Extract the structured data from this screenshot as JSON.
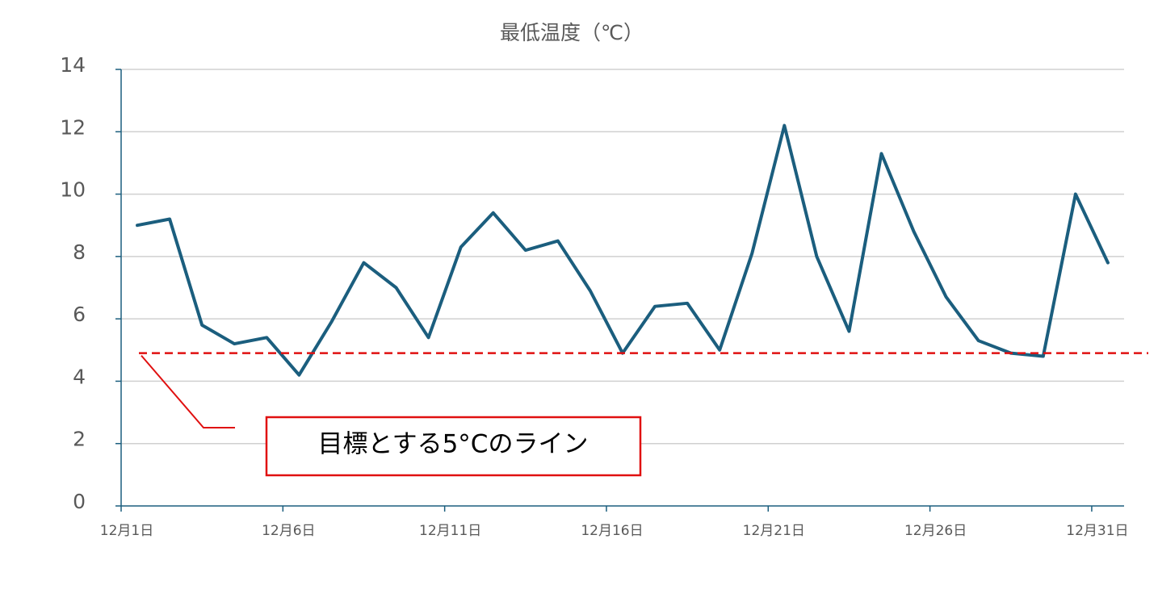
{
  "chart_data": {
    "type": "line",
    "title": "最低温度（℃）",
    "categories": [
      "12月1日",
      null,
      null,
      null,
      null,
      "12月6日",
      null,
      null,
      null,
      null,
      "12月11日",
      null,
      null,
      null,
      null,
      "12月16日",
      null,
      null,
      null,
      null,
      "12月21日",
      null,
      null,
      null,
      null,
      "12月26日",
      null,
      null,
      null,
      null,
      "12月31日"
    ],
    "values": [
      9.0,
      9.2,
      5.8,
      5.2,
      5.4,
      4.2,
      5.9,
      7.8,
      7.0,
      5.4,
      8.3,
      9.4,
      8.2,
      8.5,
      6.9,
      4.9,
      6.4,
      6.5,
      5.0,
      8.1,
      12.2,
      8.0,
      5.6,
      11.3,
      8.8,
      6.7,
      5.3,
      4.9,
      4.8,
      10.0,
      7.8
    ],
    "color": "#1b5e7e",
    "ylim": [
      0,
      14
    ],
    "yticks": [
      0,
      2,
      4,
      6,
      8,
      10,
      12,
      14
    ],
    "grid": true,
    "reference_line": {
      "value": 4.9,
      "color": "#e01010",
      "label": "目標とする5°Cのライン"
    }
  }
}
